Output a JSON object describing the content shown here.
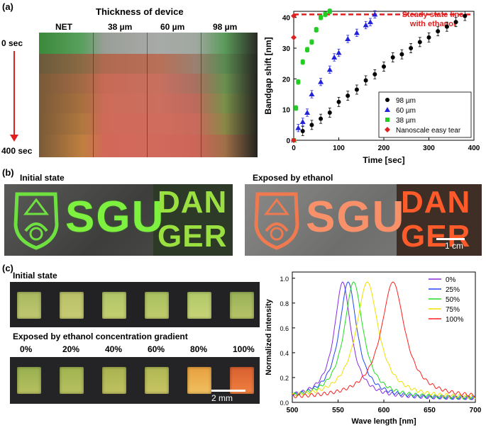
{
  "panel_a": {
    "label": "(a)",
    "photo_title": "Thickness of device",
    "columns": [
      "NET",
      "38 µm",
      "60 µm",
      "98 µm"
    ],
    "time_start": "0 sec",
    "time_end": "400 sec"
  },
  "panel_b": {
    "label": "(b)",
    "left_title": "Initial state",
    "right_title": "Exposed by ethanol",
    "logo_text": "SGU",
    "danger_line1": "DAN",
    "danger_line2": "GER",
    "scale": "1 cm"
  },
  "panel_c": {
    "label": "(c)",
    "initial_title": "Initial state",
    "exposed_title": "Exposed by ethanol concentration gradient",
    "concentrations": [
      "0%",
      "20%",
      "40%",
      "60%",
      "80%",
      "100%"
    ],
    "scale": "2 mm"
  },
  "chart_data": [
    {
      "type": "scatter",
      "xlabel": "Time [sec]",
      "ylabel": "Bandgap shift [nm]",
      "xlim": [
        0,
        400
      ],
      "ylim": [
        0,
        42
      ],
      "xticks": [
        0,
        100,
        200,
        300,
        400
      ],
      "yticks": [
        0,
        10,
        20,
        30,
        40
      ],
      "legend_position": "bottom-right",
      "annotation": "Steady state line\nwith ethanol",
      "steady_state_y": 41,
      "series": [
        {
          "name": "98 µm",
          "color": "#000000",
          "marker": "circle",
          "x": [
            0,
            20,
            40,
            60,
            80,
            100,
            120,
            140,
            160,
            180,
            200,
            220,
            240,
            260,
            280,
            300,
            320,
            340,
            360,
            380
          ],
          "y": [
            0,
            3,
            5,
            7,
            9,
            12.5,
            14.5,
            16.5,
            19.5,
            21.5,
            24,
            27,
            28,
            30,
            32,
            33.5,
            35.5,
            37,
            38.5,
            40.5
          ],
          "err": 1.5
        },
        {
          "name": "60 µm",
          "color": "#2222dd",
          "marker": "triangle",
          "x": [
            0,
            10,
            20,
            30,
            40,
            60,
            80,
            90,
            100,
            120,
            140,
            160,
            170,
            180
          ],
          "y": [
            0,
            4,
            6,
            9,
            15,
            19,
            23,
            27,
            28.5,
            33,
            35,
            37.5,
            38.5,
            41
          ],
          "err": 1.2
        },
        {
          "name": "38 µm",
          "color": "#22cc22",
          "marker": "square",
          "x": [
            0,
            5,
            10,
            20,
            30,
            40,
            50,
            60,
            70,
            80
          ],
          "y": [
            0,
            10.5,
            19,
            25.5,
            29.5,
            32,
            36,
            40,
            41,
            42
          ],
          "err": 0.8
        },
        {
          "name": "Nanoscale easy tear",
          "color": "#dd2222",
          "marker": "diamond",
          "x": [
            0,
            0,
            0
          ],
          "y": [
            0,
            33.5,
            40.5
          ],
          "err": 0
        }
      ]
    },
    {
      "type": "line",
      "xlabel": "Wave length [nm]",
      "ylabel": "Normalized intensity",
      "xlim": [
        500,
        700
      ],
      "ylim": [
        0,
        1.05
      ],
      "xticks": [
        500,
        550,
        600,
        650,
        700
      ],
      "yticks": [
        0.0,
        0.2,
        0.4,
        0.6,
        0.8,
        1.0
      ],
      "legend_position": "top-right",
      "series": [
        {
          "name": "0%",
          "color": "#8a2be2",
          "peak": 555,
          "width": 14
        },
        {
          "name": "25%",
          "color": "#2244ff",
          "peak": 561,
          "width": 15
        },
        {
          "name": "50%",
          "color": "#22dd22",
          "peak": 567,
          "width": 16
        },
        {
          "name": "75%",
          "color": "#f0e000",
          "peak": 582,
          "width": 19
        },
        {
          "name": "100%",
          "color": "#ff2020",
          "peak": 610,
          "width": 20
        }
      ]
    }
  ]
}
